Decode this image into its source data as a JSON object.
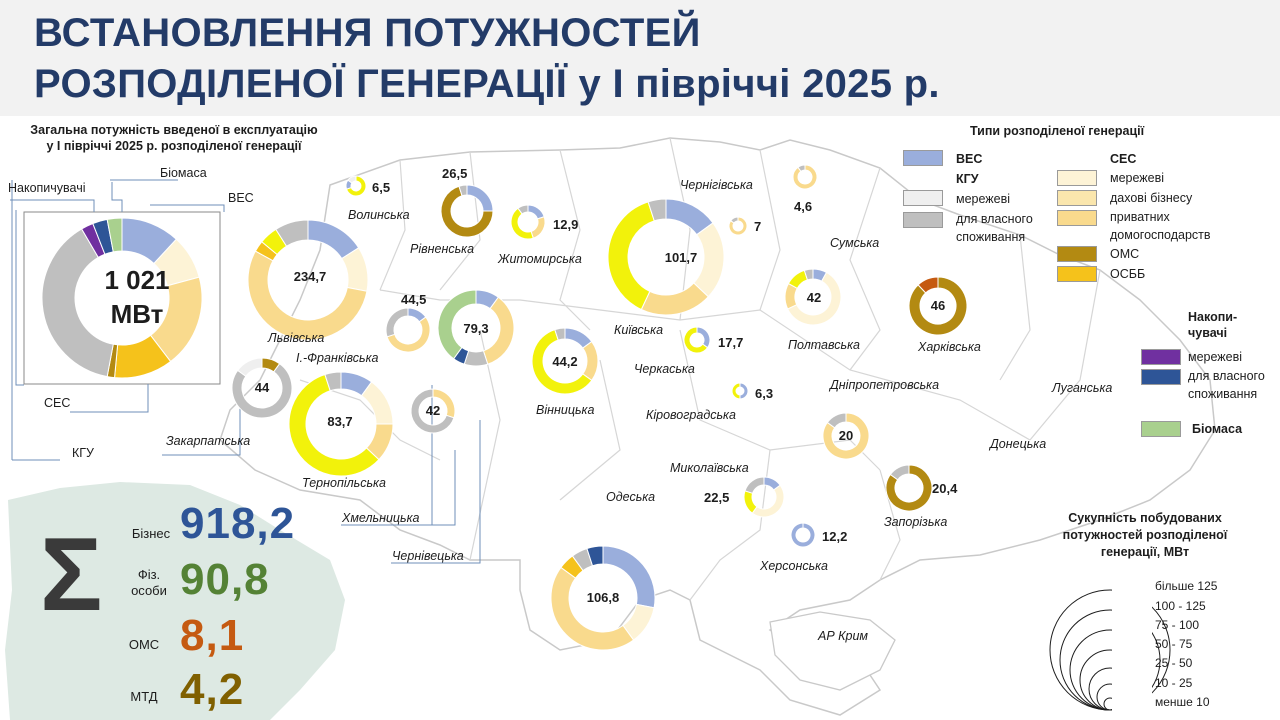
{
  "title": {
    "line1": "ВСТАНОВЛЕННЯ ПОТУЖНОСТЕЙ",
    "line2": "РОЗПОДІЛЕНОЇ ГЕНЕРАЦІЇ у І півріччі 2025 р."
  },
  "colors": {
    "ves": "#9aaedc",
    "kgu_grid": "#efefef",
    "kgu_own": "#bfbfbf",
    "ses_grid": "#fdf3d6",
    "ses_roof": "#fae6ad",
    "ses_home": "#f9da8d",
    "ses_oms": "#b38a12",
    "ses_osbb": "#f5c21b",
    "acc_grid": "#7030a0",
    "acc_own": "#2e5597",
    "bio": "#a9d08e",
    "map_fill": "#dde9e3",
    "border": "#c9c9c9",
    "bright_yellow": "#f2f20b",
    "sum_business": "#2e5597",
    "sum_individuals": "#548235",
    "sum_oms": "#c55a11",
    "sum_mtd": "#806000"
  },
  "total": {
    "title_line1": "Загальна потужність введеної в експлуатацію",
    "title_line2": "у І півріччі 2025 р. розподіленої генерації",
    "value_line1": "1 021",
    "value_line2": "МВт",
    "callouts": {
      "storage": "Накопичувачі",
      "biomass": "Біомаса",
      "wind": "ВЕС",
      "solar": "СЕС",
      "kgu": "КГУ"
    },
    "shares": {
      "ves": 0.12,
      "ses_grid": 0.09,
      "ses_home": 0.19,
      "ses_osbb": 0.12,
      "ses_oms": 0.015,
      "kgu_own": 0.39,
      "acc_grid": 0.025,
      "bio": 0.03,
      "acc_own": 0.03
    }
  },
  "regions": [
    {
      "id": "volyn",
      "name": "Волинська",
      "value": "6,5",
      "ring": "bright_yellow"
    },
    {
      "id": "rivne",
      "name": "Рівненська",
      "value": "26,5",
      "ring": "ses_oms"
    },
    {
      "id": "zhytomyr",
      "name": "Житомирська",
      "value": "12,9",
      "ring": "bright_yellow"
    },
    {
      "id": "chernihiv",
      "name": "Чернігівська",
      "value": "7",
      "ring": "bright_yellow"
    },
    {
      "id": "kyiv",
      "name": "Київська",
      "value": "101,7",
      "ring": "bright_yellow"
    },
    {
      "id": "sumy",
      "name": "Сумська",
      "value": "4,6",
      "ring": "ses_home"
    },
    {
      "id": "lviv",
      "name": "Львівська",
      "value": "234,7",
      "ring": "ses_home"
    },
    {
      "id": "ivano",
      "name": "І.-Франківська",
      "value": "44,5",
      "ring": "ses_home"
    },
    {
      "id": "ternopil",
      "name": "Тернопільська",
      "value": "83,7",
      "ring": "bright_yellow"
    },
    {
      "id": "khmelnytskyi",
      "name": "Хмельницька",
      "value": "79,3",
      "ring": "bio"
    },
    {
      "id": "zakarpattia",
      "name": "Закарпатська",
      "value": "44",
      "ring": "kgu_own"
    },
    {
      "id": "chernivtsi",
      "name": "Чернівецька",
      "value": "42",
      "ring": "kgu_own"
    },
    {
      "id": "vinnytsia",
      "name": "Вінницька",
      "value": "44,2",
      "ring": "bright_yellow"
    },
    {
      "id": "cherkasy",
      "name": "Черкаська",
      "value": "17,7",
      "ring": "bright_yellow"
    },
    {
      "id": "kirovohrad",
      "name": "Кіровоградська",
      "value": "6,3",
      "ring": "bright_yellow"
    },
    {
      "id": "poltava",
      "name": "Полтавська",
      "value": "42",
      "ring": "ses_grid"
    },
    {
      "id": "kharkiv",
      "name": "Харківська",
      "value": "46",
      "ring": "ses_oms"
    },
    {
      "id": "dnipro",
      "name": "Дніпропетровська",
      "value": "20",
      "ring": "ses_home"
    },
    {
      "id": "zaporizhzhia",
      "name": "Запорізька",
      "value": "20,4",
      "ring": "ses_oms"
    },
    {
      "id": "mykolaiv",
      "name": "Миколаївська",
      "value": "22,5",
      "ring": "ses_grid"
    },
    {
      "id": "odesa",
      "name": "Одеська",
      "value": "106,8",
      "ring": "ses_home"
    },
    {
      "id": "kherson",
      "name": "Херсонська",
      "value": "12,2",
      "ring": "ves"
    }
  ],
  "other_regions": {
    "luhansk": "Луганська",
    "donetsk": "Донецька",
    "crimea": "АР Крим"
  },
  "legend": {
    "title": "Типи розподіленої генерації",
    "ves": "ВЕС",
    "kgu": "КГУ",
    "kgu_grid": "мережеві",
    "kgu_own_line1": "для власного",
    "kgu_own_line2": "споживання",
    "ses": "СЕС",
    "ses_grid": "мережеві",
    "ses_roof": "дахові бізнесу",
    "ses_home_line1": "приватних",
    "ses_home_line2": "домогосподарств",
    "ses_oms": "ОМС",
    "ses_osbb": "ОСББ",
    "acc_line1": "Накопи-",
    "acc_line2": "чувачі",
    "acc_grid": "мережеві",
    "acc_own_line1": "для власного",
    "acc_own_line2": "споживання",
    "bio": "Біомаса"
  },
  "sums": {
    "business_label": "Бізнес",
    "business_value": "918,2",
    "individuals_label_line1": "Фіз.",
    "individuals_label_line2": "особи",
    "individuals_value": "90,8",
    "oms_label": "ОМС",
    "oms_value": "8,1",
    "mtd_label": "МТД",
    "mtd_value": "4,2",
    "symbol": "Σ"
  },
  "size_legend": {
    "title_line1": "Сукупність побудованих",
    "title_line2": "потужностей розподіленої",
    "title_line3": "генерації, МВт",
    "items": [
      "більше 125",
      "100 - 125",
      "75 - 100",
      "50 - 75",
      "25 - 50",
      "10 - 25",
      "менше 10"
    ]
  }
}
